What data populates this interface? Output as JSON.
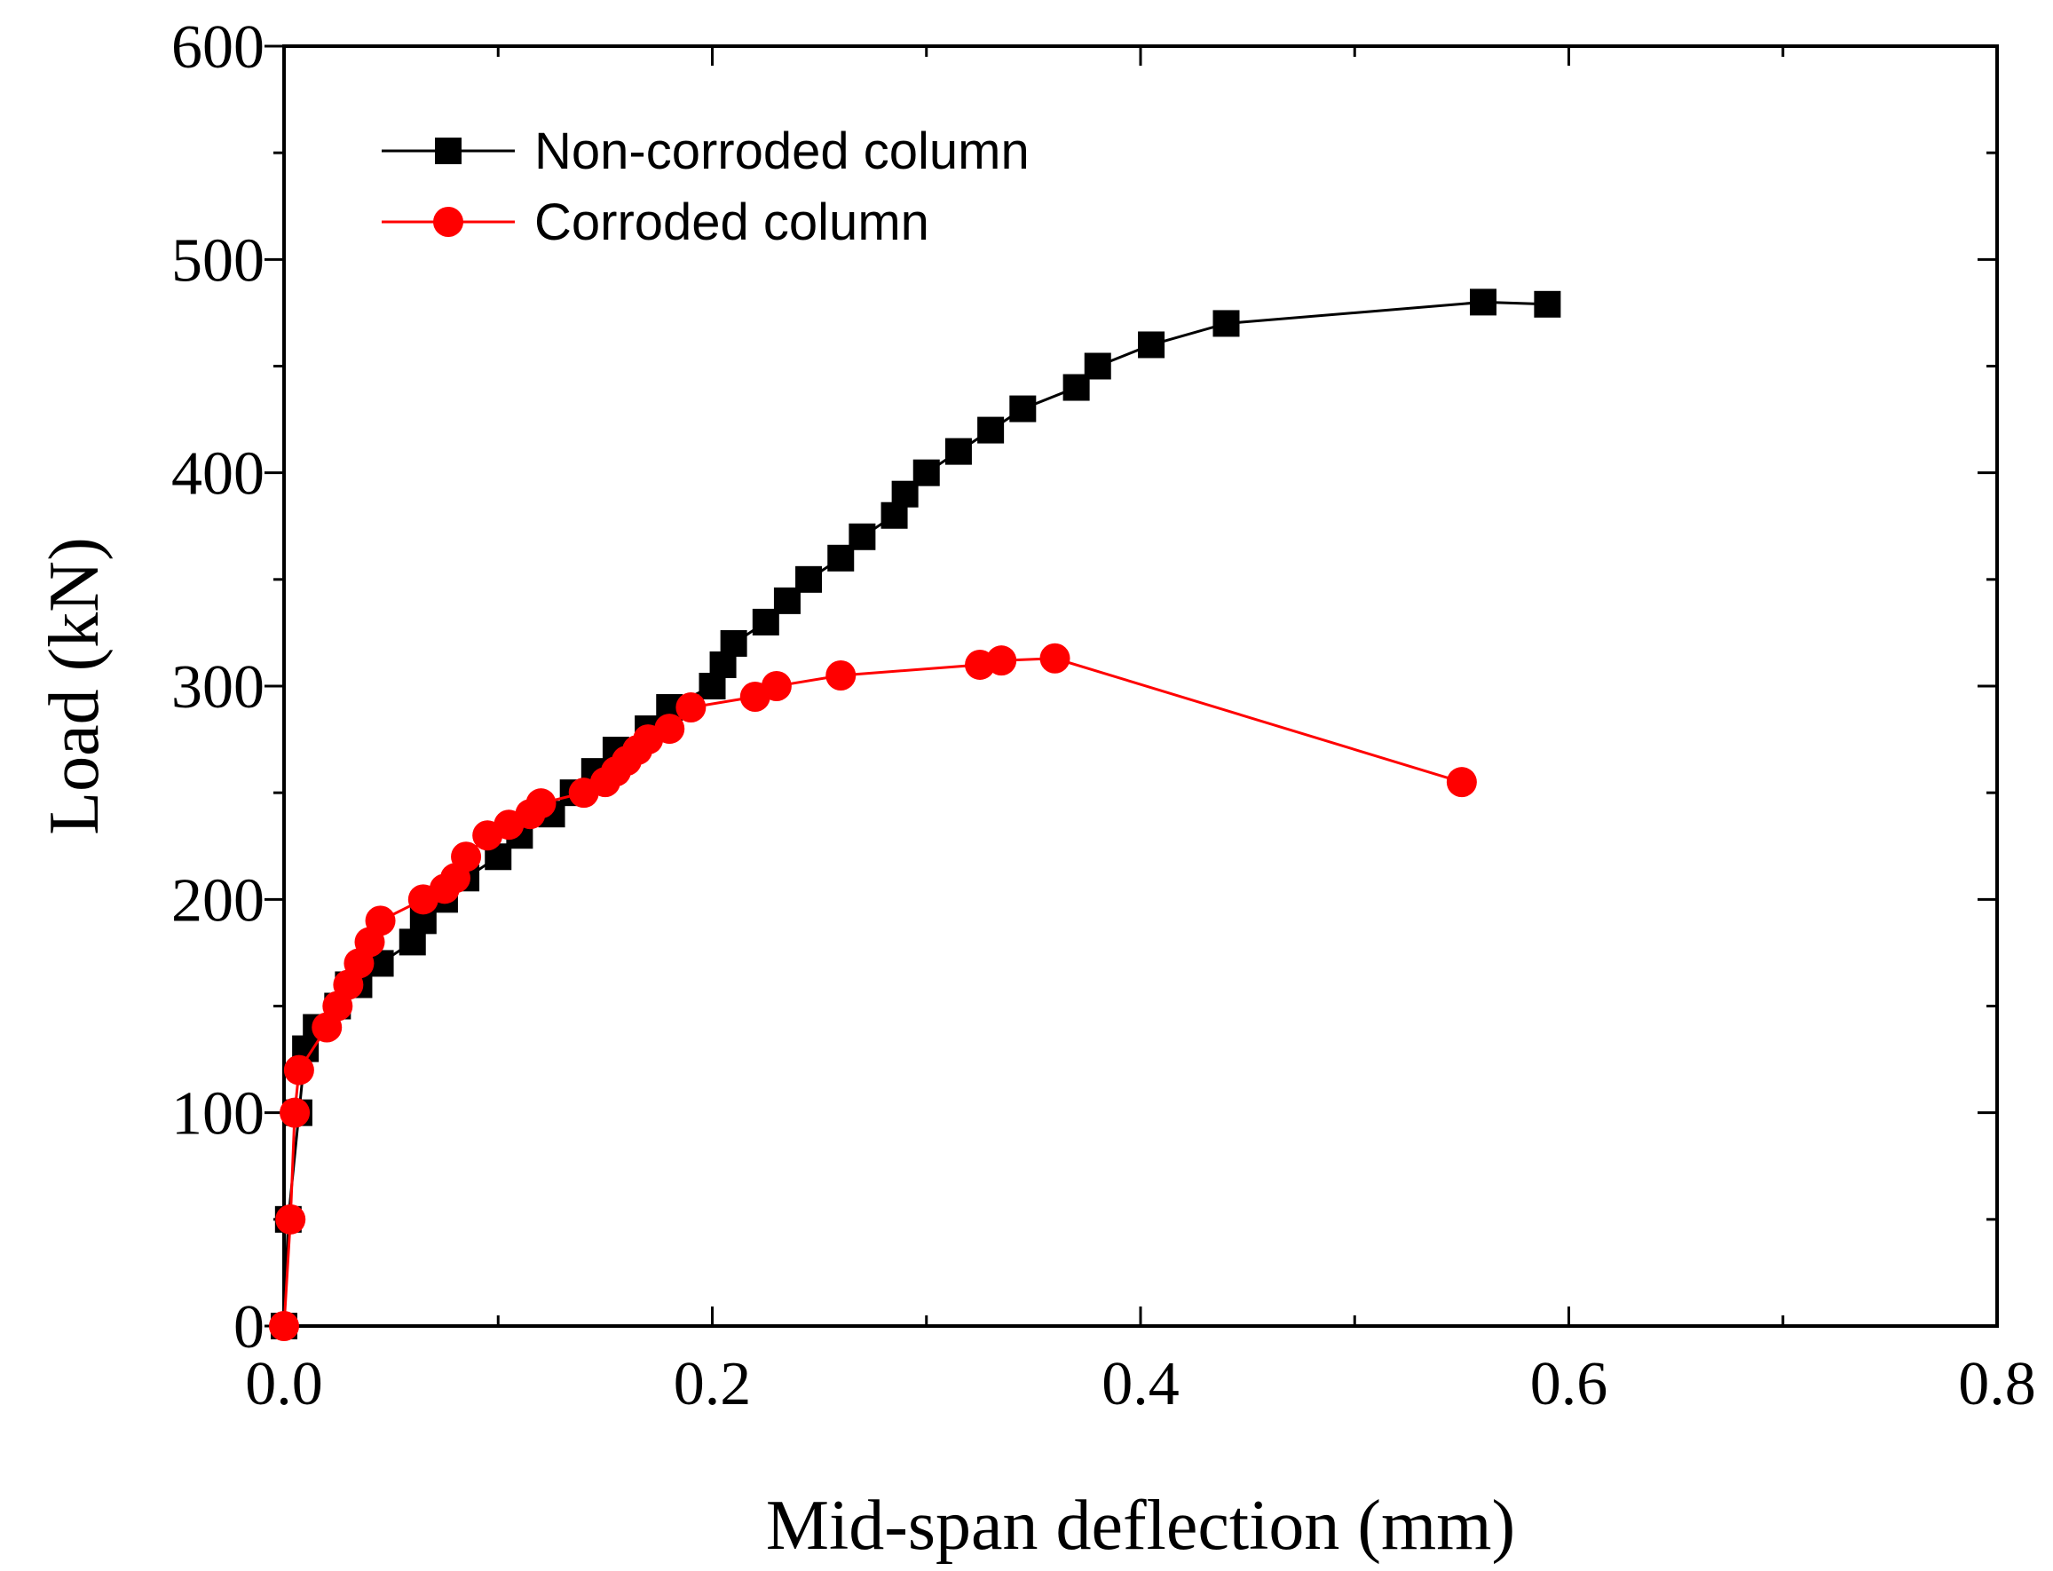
{
  "chart_data": {
    "type": "line",
    "xlabel": "Mid-span deflection (mm)",
    "ylabel": "Load (kN)",
    "xlim": [
      0,
      0.8
    ],
    "ylim": [
      0,
      600
    ],
    "xticks": [
      0.0,
      0.2,
      0.4,
      0.6,
      0.8
    ],
    "xtick_labels": [
      "0.0",
      "0.2",
      "0.4",
      "0.6",
      "0.8"
    ],
    "yticks": [
      0,
      100,
      200,
      300,
      400,
      500,
      600
    ],
    "ytick_labels": [
      "0",
      "100",
      "200",
      "300",
      "400",
      "500",
      "600"
    ],
    "grid": false,
    "legend_position": "top-left",
    "series": [
      {
        "name": "Non-corroded column",
        "color": "#000000",
        "marker": "square",
        "x": [
          0,
          0.002,
          0.007,
          0.01,
          0.015,
          0.025,
          0.03,
          0.035,
          0.045,
          0.06,
          0.065,
          0.075,
          0.085,
          0.1,
          0.11,
          0.125,
          0.135,
          0.145,
          0.155,
          0.17,
          0.18,
          0.2,
          0.205,
          0.21,
          0.225,
          0.235,
          0.245,
          0.26,
          0.27,
          0.285,
          0.29,
          0.3,
          0.315,
          0.33,
          0.345,
          0.37,
          0.38,
          0.405,
          0.44,
          0.56,
          0.59
        ],
        "y": [
          0,
          50,
          100,
          130,
          140,
          150,
          160,
          160,
          170,
          180,
          190,
          200,
          210,
          220,
          230,
          240,
          250,
          260,
          270,
          280,
          290,
          300,
          310,
          320,
          330,
          340,
          350,
          360,
          370,
          380,
          390,
          400,
          410,
          420,
          430,
          440,
          450,
          460,
          470,
          480,
          479
        ]
      },
      {
        "name": "Corroded column",
        "color": "#ff0000",
        "marker": "circle",
        "x": [
          0,
          0.003,
          0.005,
          0.007,
          0.02,
          0.025,
          0.03,
          0.035,
          0.04,
          0.045,
          0.065,
          0.075,
          0.08,
          0.085,
          0.095,
          0.105,
          0.115,
          0.12,
          0.14,
          0.15,
          0.155,
          0.16,
          0.165,
          0.17,
          0.18,
          0.19,
          0.22,
          0.23,
          0.26,
          0.325,
          0.335,
          0.36,
          0.55
        ],
        "y": [
          0,
          50,
          100,
          120,
          140,
          150,
          160,
          170,
          180,
          190,
          200,
          205,
          210,
          220,
          230,
          235,
          240,
          245,
          250,
          255,
          260,
          265,
          270,
          275,
          280,
          290,
          295,
          300,
          305,
          310,
          312,
          313,
          255
        ]
      }
    ]
  }
}
